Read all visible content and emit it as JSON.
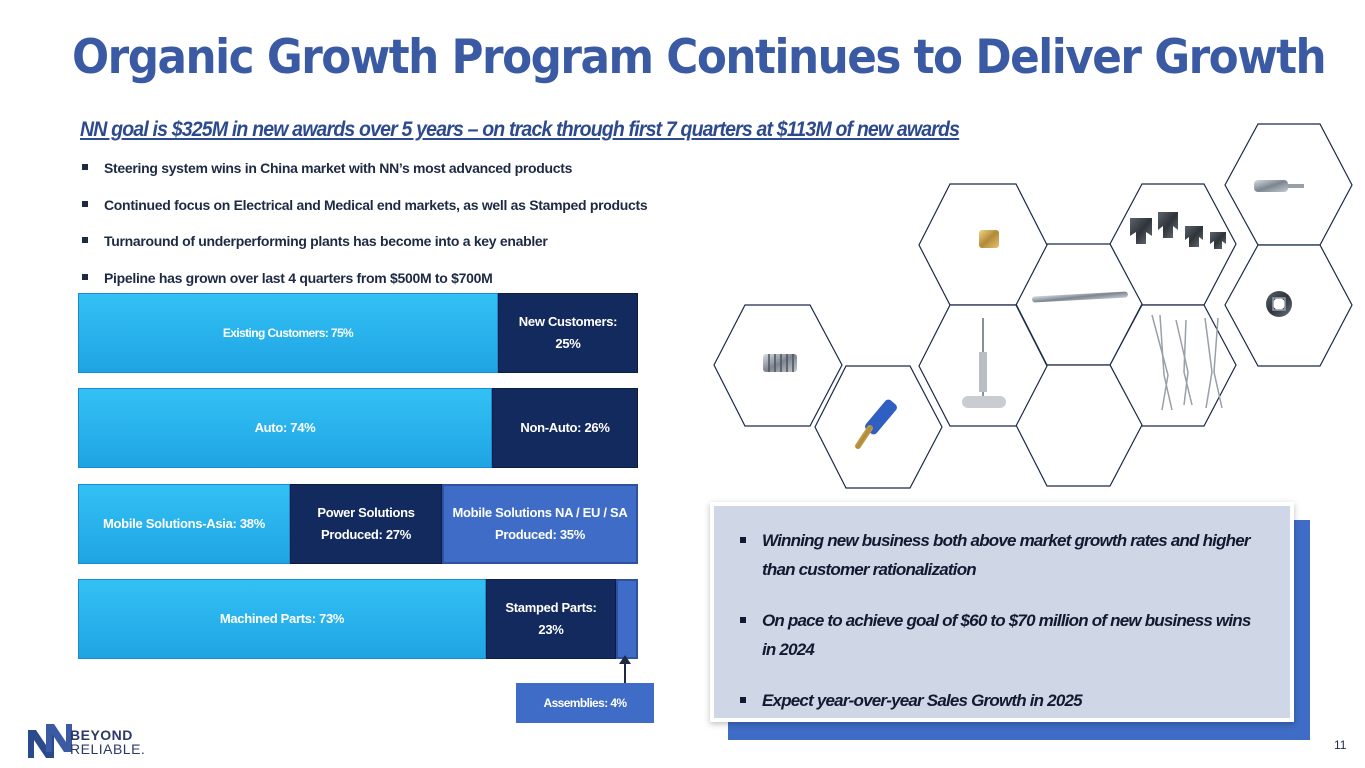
{
  "title": "Organic Growth Program Continues to Deliver Growth",
  "subtitle": "NN goal is $325M in new awards over 5 years – on track through first 7 quarters at $113M of new awards",
  "bullets": [
    "Steering system wins in China market with NN’s most advanced products",
    "Continued focus on Electrical and Medical end markets, as well as Stamped products",
    "Turnaround of underperforming plants has become into a key enabler",
    "Pipeline has grown over last 4 quarters from $500M to $700M"
  ],
  "chart_data": {
    "type": "bar",
    "orientation": "horizontal-stacked-100",
    "rows": [
      {
        "segments": [
          {
            "label": "Existing Customers: 75%",
            "value": 75
          },
          {
            "label_line1": "New Customers:",
            "label_line2": "25%",
            "value": 25
          }
        ]
      },
      {
        "segments": [
          {
            "label": "Auto: 74%",
            "value": 74
          },
          {
            "label": "Non-Auto: 26%",
            "value": 26
          }
        ]
      },
      {
        "segments": [
          {
            "label": "Mobile Solutions-Asia: 38%",
            "value": 38
          },
          {
            "label_line1": "Power Solutions",
            "label_line2": "Produced: 27%",
            "value": 27
          },
          {
            "label_line1": "Mobile Solutions NA / EU / SA",
            "label_line2": "Produced: 35%",
            "value": 35
          }
        ]
      },
      {
        "segments": [
          {
            "label": "Machined Parts: 73%",
            "value": 73
          },
          {
            "label_line1": "Stamped Parts:",
            "label_line2": "23%",
            "value": 23
          },
          {
            "label": "",
            "value": 4
          }
        ]
      }
    ],
    "annotation": "Assemblies: 4%"
  },
  "callout": [
    "Winning new business both above market growth rates and higher than customer rationalization",
    "On pace to achieve goal of $60 to $70 million of new business wins in 2024",
    "Expect year-over-year Sales Growth in 2025"
  ],
  "logo": {
    "line1": "BEYOND",
    "line2": "RELIABLE."
  },
  "page_number": "11",
  "colors": {
    "title": "#3a5aa3",
    "light_bar": "#1fa4e3",
    "dark_bar": "#132a5e",
    "mid_bar": "#3f6cc6",
    "callout_bg": "#cfd6e6"
  },
  "product_images": [
    "threaded-insert-icon",
    "spring-clip-icon",
    "t-handle-tool-icon",
    "threaded-rod-icon",
    "thread-set-icon",
    "surgical-instrument-icon",
    "bone-screw-icon",
    "contact-claw-icon",
    "gear-ring-icon",
    "stamped-terminal-icon"
  ]
}
